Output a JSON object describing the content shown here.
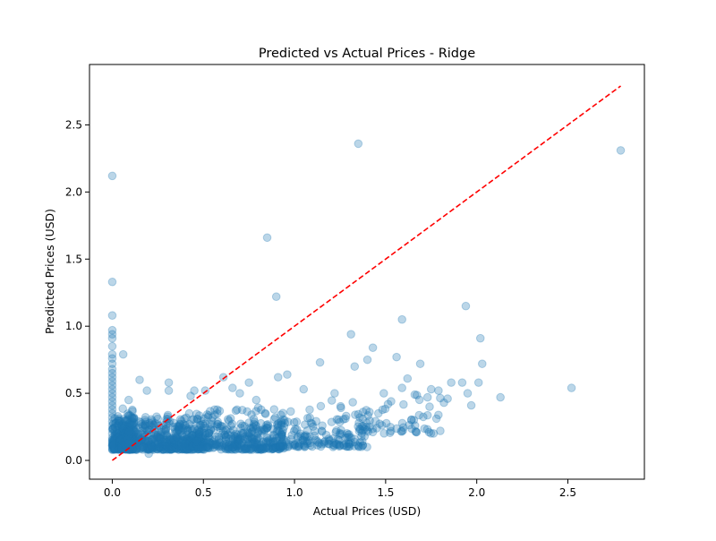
{
  "chart_data": {
    "type": "scatter",
    "title": "Predicted vs Actual Prices - Ridge",
    "xlabel": "Actual Prices (USD)",
    "ylabel": "Predicted Prices (USD)",
    "xlim": [
      -0.125,
      2.92
    ],
    "ylim": [
      -0.14,
      2.95
    ],
    "xticks": [
      0.0,
      0.5,
      1.0,
      1.5,
      2.0,
      2.5
    ],
    "xtick_labels": [
      "0.0",
      "0.5",
      "1.0",
      "1.5",
      "2.0",
      "2.5"
    ],
    "yticks": [
      0.0,
      0.5,
      1.0,
      1.5,
      2.0,
      2.5
    ],
    "ytick_labels": [
      "0.0",
      "0.5",
      "1.0",
      "1.5",
      "2.0",
      "2.5"
    ],
    "grid": false,
    "point_color": "#1f77b4",
    "point_alpha": 0.3,
    "reference_line": {
      "from": [
        0.0,
        0.0
      ],
      "to": [
        2.79,
        2.79
      ],
      "color": "#ff0000",
      "style": "dashed"
    },
    "points": [
      [
        0.0,
        2.12
      ],
      [
        0.0,
        1.33
      ],
      [
        0.0,
        1.08
      ],
      [
        0.0,
        0.97
      ],
      [
        0.0,
        0.94
      ],
      [
        0.0,
        0.91
      ],
      [
        0.0,
        0.85
      ],
      [
        0.0,
        0.79
      ],
      [
        0.0,
        0.76
      ],
      [
        0.0,
        0.72
      ],
      [
        0.0,
        0.68
      ],
      [
        0.0,
        0.65
      ],
      [
        0.0,
        0.62
      ],
      [
        0.0,
        0.59
      ],
      [
        0.0,
        0.56
      ],
      [
        0.0,
        0.53
      ],
      [
        0.0,
        0.5
      ],
      [
        0.0,
        0.47
      ],
      [
        0.0,
        0.44
      ],
      [
        0.0,
        0.41
      ],
      [
        0.0,
        0.38
      ],
      [
        0.0,
        0.35
      ],
      [
        0.0,
        0.32
      ],
      [
        0.0,
        0.29
      ],
      [
        0.0,
        0.26
      ],
      [
        0.0,
        0.23
      ],
      [
        0.0,
        0.2
      ],
      [
        0.0,
        0.17
      ],
      [
        0.0,
        0.14
      ],
      [
        0.0,
        0.11
      ],
      [
        0.06,
        0.79
      ],
      [
        0.09,
        0.45
      ],
      [
        0.15,
        0.6
      ],
      [
        0.19,
        0.52
      ],
      [
        0.31,
        0.58
      ],
      [
        0.31,
        0.52
      ],
      [
        0.43,
        0.48
      ],
      [
        0.45,
        0.52
      ],
      [
        0.51,
        0.52
      ],
      [
        0.61,
        0.62
      ],
      [
        0.66,
        0.54
      ],
      [
        0.7,
        0.5
      ],
      [
        0.75,
        0.58
      ],
      [
        0.79,
        0.45
      ],
      [
        0.85,
        1.66
      ],
      [
        0.9,
        1.22
      ],
      [
        0.96,
        0.64
      ],
      [
        0.91,
        0.62
      ],
      [
        1.05,
        0.53
      ],
      [
        1.14,
        0.73
      ],
      [
        1.22,
        0.5
      ],
      [
        1.31,
        0.94
      ],
      [
        1.35,
        2.36
      ],
      [
        1.4,
        0.75
      ],
      [
        1.43,
        0.84
      ],
      [
        1.33,
        0.7
      ],
      [
        1.49,
        0.5
      ],
      [
        1.53,
        0.44
      ],
      [
        1.56,
        0.77
      ],
      [
        1.59,
        1.05
      ],
      [
        1.59,
        0.54
      ],
      [
        1.62,
        0.61
      ],
      [
        1.66,
        0.49
      ],
      [
        1.69,
        0.72
      ],
      [
        1.73,
        0.47
      ],
      [
        1.75,
        0.53
      ],
      [
        1.79,
        0.52
      ],
      [
        1.86,
        0.58
      ],
      [
        1.8,
        0.22
      ],
      [
        1.82,
        0.43
      ],
      [
        1.84,
        0.46
      ],
      [
        1.92,
        0.58
      ],
      [
        1.94,
        1.15
      ],
      [
        1.95,
        0.5
      ],
      [
        1.97,
        0.41
      ],
      [
        2.01,
        0.58
      ],
      [
        2.02,
        0.91
      ],
      [
        2.03,
        0.72
      ],
      [
        2.13,
        0.47
      ],
      [
        2.52,
        0.54
      ],
      [
        2.79,
        2.31
      ],
      [
        0.2,
        0.05
      ],
      [
        1.24,
        0.12
      ],
      [
        1.27,
        0.11
      ]
    ],
    "dense_regions": [
      {
        "x": [
          0.0,
          0.12
        ],
        "y": [
          0.08,
          0.4
        ],
        "count": 320
      },
      {
        "x": [
          0.05,
          0.5
        ],
        "y": [
          0.08,
          0.38
        ],
        "count": 520
      },
      {
        "x": [
          0.45,
          0.95
        ],
        "y": [
          0.08,
          0.42
        ],
        "count": 380
      },
      {
        "x": [
          0.9,
          1.4
        ],
        "y": [
          0.1,
          0.48
        ],
        "count": 160
      },
      {
        "x": [
          1.35,
          1.8
        ],
        "y": [
          0.2,
          0.55
        ],
        "count": 60
      }
    ]
  }
}
